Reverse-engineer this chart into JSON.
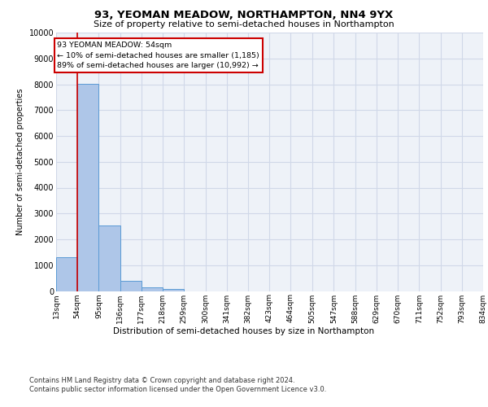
{
  "title1": "93, YEOMAN MEADOW, NORTHAMPTON, NN4 9YX",
  "title2": "Size of property relative to semi-detached houses in Northampton",
  "xlabel_dist": "Distribution of semi-detached houses by size in Northampton",
  "ylabel": "Number of semi-detached properties",
  "footer1": "Contains HM Land Registry data © Crown copyright and database right 2024.",
  "footer2": "Contains public sector information licensed under the Open Government Licence v3.0.",
  "annotation_title": "93 YEOMAN MEADOW: 54sqm",
  "annotation_line1": "← 10% of semi-detached houses are smaller (1,185)",
  "annotation_line2": "89% of semi-detached houses are larger (10,992) →",
  "property_size_sqm": 54,
  "bin_edges": [
    13,
    54,
    95,
    136,
    177,
    218,
    259,
    300,
    341,
    382,
    423,
    464,
    505,
    547,
    588,
    629,
    670,
    711,
    752,
    793,
    834
  ],
  "bar_heights": [
    1320,
    8020,
    2530,
    390,
    140,
    90,
    0,
    0,
    0,
    0,
    0,
    0,
    0,
    0,
    0,
    0,
    0,
    0,
    0,
    0
  ],
  "bar_color": "#aec6e8",
  "bar_edge_color": "#5b9bd5",
  "red_line_color": "#cc0000",
  "annotation_box_edge": "#cc0000",
  "grid_color": "#d0d8e8",
  "background_color": "#eef2f8",
  "ylim": [
    0,
    10000
  ],
  "yticks": [
    0,
    1000,
    2000,
    3000,
    4000,
    5000,
    6000,
    7000,
    8000,
    9000,
    10000
  ],
  "tick_labels": [
    "13sqm",
    "54sqm",
    "95sqm",
    "136sqm",
    "177sqm",
    "218sqm",
    "259sqm",
    "300sqm",
    "341sqm",
    "382sqm",
    "423sqm",
    "464sqm",
    "505sqm",
    "547sqm",
    "588sqm",
    "629sqm",
    "670sqm",
    "711sqm",
    "752sqm",
    "793sqm",
    "834sqm"
  ]
}
